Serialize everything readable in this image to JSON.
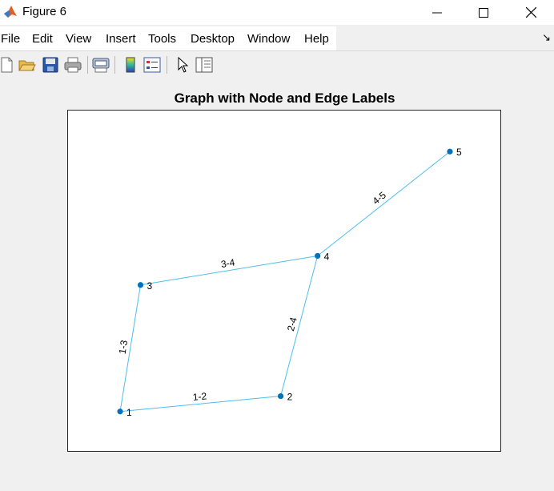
{
  "window": {
    "title": "Figure 6",
    "controls": [
      "minimize",
      "maximize",
      "close"
    ]
  },
  "menu": {
    "items": [
      "File",
      "Edit",
      "View",
      "Insert",
      "Tools",
      "Desktop",
      "Window",
      "Help"
    ]
  },
  "toolbar": {
    "buttons": [
      "new-figure-icon",
      "open-file-icon",
      "save-icon",
      "print-icon",
      "print-preview-icon",
      "colorbar-icon",
      "legend-icon",
      "select-pointer-icon",
      "property-inspector-icon"
    ]
  },
  "figure": {
    "title": "Graph with Node and Edge Labels"
  },
  "chart_data": {
    "type": "graph",
    "title": "Graph with Node and Edge Labels",
    "nodes": [
      {
        "id": "1",
        "x": 0.12,
        "y": 0.12
      },
      {
        "id": "2",
        "x": 0.49,
        "y": 0.165
      },
      {
        "id": "3",
        "x": 0.167,
        "y": 0.49
      },
      {
        "id": "4",
        "x": 0.575,
        "y": 0.575
      },
      {
        "id": "5",
        "x": 0.88,
        "y": 0.88
      }
    ],
    "edges": [
      {
        "source": "1",
        "target": "2",
        "label": "1-2"
      },
      {
        "source": "1",
        "target": "3",
        "label": "1-3"
      },
      {
        "source": "2",
        "target": "4",
        "label": "2-4"
      },
      {
        "source": "3",
        "target": "4",
        "label": "3-4"
      },
      {
        "source": "4",
        "target": "5",
        "label": "4-5"
      }
    ],
    "xlim": [
      0,
      1
    ],
    "ylim": [
      0,
      1
    ],
    "node_color": "#0072bd",
    "edge_color": "#4dbeee",
    "grid": false
  }
}
